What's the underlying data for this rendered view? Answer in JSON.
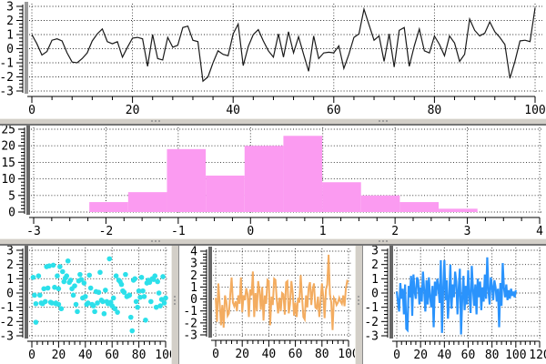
{
  "ui": {
    "background": "#ffffff",
    "sash_color": "#d3cfc8",
    "sash_shadow": "#757575",
    "grid_color": "#2a2a2a",
    "axis_color": "#000000",
    "label_color": "#000000"
  },
  "chart_data": [
    {
      "id": "top-line",
      "type": "line",
      "color": "#1a1a1a",
      "line_width": 1.2,
      "frame_shade": "#9a9a9a",
      "title": "",
      "xlabel": "",
      "ylabel": "",
      "x_range": [
        0,
        100
      ],
      "y_range": [
        -3,
        3
      ],
      "x_ticks": [
        0,
        20,
        40,
        60,
        80,
        100
      ],
      "x_minor": 4,
      "y_ticks": [
        3,
        2,
        1,
        0,
        -1,
        -2,
        -3
      ],
      "y_minor": 0.25,
      "grid": true,
      "y": [
        1.0,
        0.35,
        -0.45,
        -0.2,
        0.6,
        0.7,
        0.55,
        -0.3,
        -0.95,
        -1.0,
        -0.7,
        -0.3,
        0.55,
        1.05,
        1.4,
        0.5,
        0.35,
        0.5,
        -0.6,
        0.1,
        0.75,
        0.8,
        0.7,
        -1.25,
        1.0,
        -0.7,
        -0.8,
        0.8,
        0.1,
        0.25,
        1.5,
        1.6,
        0.6,
        0.5,
        -2.3,
        -2.0,
        -1.0,
        -0.15,
        -0.4,
        -0.5,
        1.05,
        1.75,
        -1.2,
        0.15,
        1.0,
        1.35,
        0.55,
        -0.15,
        -0.6,
        1.05,
        -0.6,
        1.2,
        -0.3,
        0.85,
        -0.4,
        -1.6,
        0.9,
        -0.7,
        -0.3,
        -0.25,
        -0.3,
        0.2,
        -1.4,
        -0.4,
        0.8,
        1.05,
        2.8,
        1.7,
        0.6,
        0.9,
        -0.9,
        1.05,
        -1.3,
        1.3,
        1.5,
        -1.25,
        0.2,
        1.4,
        -0.15,
        -0.3,
        0.9,
        0.3,
        -0.5,
        0.9,
        0.4,
        -0.9,
        -0.4,
        2.1,
        1.3,
        0.9,
        1.1,
        1.9,
        1.2,
        0.8,
        0.3,
        -2.1,
        -0.9,
        0.55,
        0.6,
        0.5,
        2.9
      ]
    },
    {
      "id": "histogram",
      "type": "histogram",
      "color": "#fb9bf1",
      "frame_shade": "#666666",
      "title": "",
      "xlabel": "",
      "ylabel": "",
      "x_range": [
        -3,
        4
      ],
      "y_range": [
        0,
        25
      ],
      "x_ticks": [
        -3,
        -2,
        -1,
        0,
        1,
        2,
        3,
        4
      ],
      "x_minor": 0.25,
      "y_ticks": [
        0,
        5,
        10,
        15,
        20,
        25
      ],
      "y_minor": 1,
      "grid": true,
      "bin_start": -2.23,
      "bin_width": 0.537,
      "counts": [
        3,
        6,
        19,
        11,
        20,
        23,
        9,
        5,
        3,
        1
      ]
    },
    {
      "id": "scatter-cyan",
      "type": "scatter",
      "color": "#2ce0ea",
      "point_radius": 2.8,
      "frame_shade": "#666666",
      "title": "",
      "xlabel": "",
      "ylabel": "",
      "x_range": [
        0,
        100
      ],
      "y_range": [
        -3,
        3
      ],
      "x_ticks": [
        0,
        20,
        40,
        60,
        80,
        100
      ],
      "x_minor": 4,
      "y_ticks": [
        3,
        2,
        1,
        0,
        -1,
        -2,
        -3
      ],
      "y_minor": 0.25,
      "grid": true,
      "points": [
        [
          1,
          1.1
        ],
        [
          2,
          -0.15
        ],
        [
          3,
          -0.75
        ],
        [
          3,
          -2.05
        ],
        [
          5,
          1.2
        ],
        [
          6,
          -0.15
        ],
        [
          7,
          -0.7
        ],
        [
          8,
          -0.75
        ],
        [
          9,
          0.3
        ],
        [
          10,
          -0.6
        ],
        [
          11,
          1.85
        ],
        [
          12,
          0.35
        ],
        [
          13,
          1.9
        ],
        [
          14,
          -0.65
        ],
        [
          15,
          -0.7
        ],
        [
          16,
          1.95
        ],
        [
          17,
          0.4
        ],
        [
          18,
          -0.7
        ],
        [
          18,
          -0.75
        ],
        [
          19,
          1.2
        ],
        [
          20,
          -0.8
        ],
        [
          20,
          0.3
        ],
        [
          21,
          1.85
        ],
        [
          22,
          -1.1
        ],
        [
          23,
          1.5
        ],
        [
          24,
          0.8
        ],
        [
          25,
          1.05
        ],
        [
          26,
          1.2
        ],
        [
          27,
          2.25
        ],
        [
          28,
          0.75
        ],
        [
          29,
          0.9
        ],
        [
          30,
          0.3
        ],
        [
          31,
          -0.15
        ],
        [
          32,
          0.5
        ],
        [
          33,
          -0.8
        ],
        [
          34,
          -1.3
        ],
        [
          35,
          0.85
        ],
        [
          36,
          1.3
        ],
        [
          37,
          0.95
        ],
        [
          38,
          -0.35
        ],
        [
          39,
          0.7
        ],
        [
          40,
          -0.25
        ],
        [
          41,
          -0.8
        ],
        [
          42,
          -0.7
        ],
        [
          43,
          1.25
        ],
        [
          44,
          0.35
        ],
        [
          45,
          -0.8
        ],
        [
          46,
          -0.9
        ],
        [
          47,
          -1.3
        ],
        [
          48,
          0.1
        ],
        [
          49,
          -0.7
        ],
        [
          50,
          0.05
        ],
        [
          51,
          1.45
        ],
        [
          52,
          -0.5
        ],
        [
          53,
          -0.6
        ],
        [
          54,
          -1.45
        ],
        [
          55,
          0.2
        ],
        [
          56,
          -0.6
        ],
        [
          57,
          -0.75
        ],
        [
          58,
          2.4
        ],
        [
          59,
          -0.65
        ],
        [
          60,
          -0.9
        ],
        [
          61,
          -0.35
        ],
        [
          62,
          -1.1
        ],
        [
          63,
          1.2
        ],
        [
          64,
          -1.35
        ],
        [
          65,
          0.9
        ],
        [
          66,
          0.8
        ],
        [
          67,
          0.6
        ],
        [
          68,
          0.15
        ],
        [
          69,
          0.05
        ],
        [
          70,
          1.3
        ],
        [
          71,
          -0.25
        ],
        [
          72,
          -0.2
        ],
        [
          73,
          -0.15
        ],
        [
          74,
          -1.7
        ],
        [
          75,
          -2.65
        ],
        [
          76,
          0.9
        ],
        [
          77,
          1.0
        ],
        [
          78,
          -0.6
        ],
        [
          79,
          -1.0
        ],
        [
          80,
          0.15
        ],
        [
          81,
          -0.3
        ],
        [
          82,
          1.1
        ],
        [
          83,
          0.15
        ],
        [
          84,
          -0.25
        ],
        [
          85,
          -1.9
        ],
        [
          86,
          0.7
        ],
        [
          87,
          0.9
        ],
        [
          88,
          0.75
        ],
        [
          89,
          -0.6
        ],
        [
          90,
          1.0
        ],
        [
          91,
          0.95
        ],
        [
          92,
          1.2
        ],
        [
          93,
          -1.0
        ],
        [
          94,
          0.8
        ],
        [
          95,
          0.0
        ],
        [
          96,
          -0.9
        ],
        [
          97,
          -0.45
        ],
        [
          98,
          1.15
        ],
        [
          99,
          -0.7
        ],
        [
          100,
          -0.35
        ]
      ]
    },
    {
      "id": "line-orange",
      "type": "line",
      "color": "#f3ac60",
      "line_width": 2,
      "frame_shade": "#666666",
      "title": "",
      "xlabel": "",
      "ylabel": "",
      "x_range": [
        0,
        100
      ],
      "y_range": [
        -3,
        4
      ],
      "x_ticks": [
        0,
        20,
        40,
        60,
        80,
        100
      ],
      "x_minor": 4,
      "y_ticks": [
        4,
        3,
        2,
        1,
        0,
        -1,
        -2,
        -3
      ],
      "y_minor": 0.25,
      "grid": true,
      "y": [
        0.1,
        -1.9,
        1.3,
        -0.3,
        -2.2,
        -0.5,
        -2.4,
        0.3,
        -0.2,
        -1.4,
        -1.2,
        0.4,
        1.8,
        -0.3,
        -0.6,
        -0.2,
        -1.0,
        0.3,
        -0.4,
        1.8,
        -1.1,
        0.3,
        -0.1,
        0.9,
        0.4,
        -1.5,
        0.8,
        0.3,
        2.3,
        -1.5,
        0.5,
        -1.0,
        1.5,
        0.7,
        -0.9,
        1.0,
        -1.8,
        0.3,
        -0.4,
        1.6,
        1.5,
        -2.2,
        0.2,
        -0.5,
        1.7,
        1.6,
        -0.1,
        -1.2,
        0.1,
        -1.0,
        0.5,
        0.4,
        -1.3,
        1.4,
        1.5,
        -1.2,
        -0.4,
        1.5,
        0.5,
        -1.4,
        -0.3,
        -1.5,
        0.1,
        -0.3,
        2.0,
        0.2,
        -1.5,
        -1.7,
        0.3,
        -0.7,
        1.0,
        1.4,
        -0.5,
        0.8,
        1.3,
        -0.7,
        -0.8,
        0.2,
        -1.5,
        -0.1,
        1.3,
        0.2,
        -1.6,
        0.8,
        1.2,
        3.7,
        0.4,
        -0.3,
        -2.6,
        0.1,
        -0.1,
        -0.5,
        -0.3,
        0.1,
        -0.2,
        -0.4,
        0.3,
        -0.6,
        0.9,
        1.5,
        1.4
      ]
    },
    {
      "id": "line-blue",
      "type": "line",
      "color": "#2a93fc",
      "line_width": 2.2,
      "frame_shade": "#666666",
      "title": "",
      "xlabel": "",
      "ylabel": "",
      "x_range": [
        0,
        120
      ],
      "y_range": [
        -3,
        3
      ],
      "x_ticks": [
        0,
        20,
        40,
        60,
        80,
        100,
        120
      ],
      "x_minor": 4,
      "y_ticks": [
        3,
        2,
        1,
        0,
        -1,
        -2,
        -3
      ],
      "y_minor": 0.25,
      "grid": true,
      "y": [
        0.1,
        -0.6,
        -1.3,
        0.7,
        -0.4,
        0.3,
        -1.5,
        0.6,
        -2.5,
        -2.6,
        0.5,
        -0.3,
        1.2,
        -1.6,
        1.3,
        0.1,
        -0.4,
        1.1,
        0.9,
        -0.8,
        0.4,
        -0.6,
        1.5,
        0.2,
        -1.3,
        0.9,
        -0.8,
        1.1,
        -0.3,
        -1.0,
        0.5,
        -2.4,
        0.8,
        -0.2,
        1.0,
        0.4,
        -0.7,
        2.3,
        -2.8,
        0.3,
        2.3,
        -0.5,
        0.9,
        -1.8,
        -0.4,
        2.0,
        -1.1,
        0.6,
        -0.3,
        1.5,
        0.8,
        -1.5,
        0.3,
        1.7,
        -2.9,
        -0.4,
        1.2,
        -1.2,
        0.5,
        -0.8,
        1.6,
        -0.2,
        -1.4,
        1.9,
        0.3,
        -0.9,
        0.6,
        -1.5,
        1.0,
        -0.3,
        0.8,
        -1.2,
        0.4,
        -0.6,
        1.3,
        -0.4,
        2.5,
        0.2,
        -0.8,
        1.1,
        0.5,
        -0.5,
        0.9,
        0.4,
        -0.6,
        0.3,
        -2.4,
        0.7,
        -0.9,
        2.1,
        0.4,
        -0.3,
        0.6,
        -0.5,
        0.2,
        -0.4,
        0.3,
        -0.2,
        0.1,
        -0.3,
        0.2
      ]
    }
  ]
}
